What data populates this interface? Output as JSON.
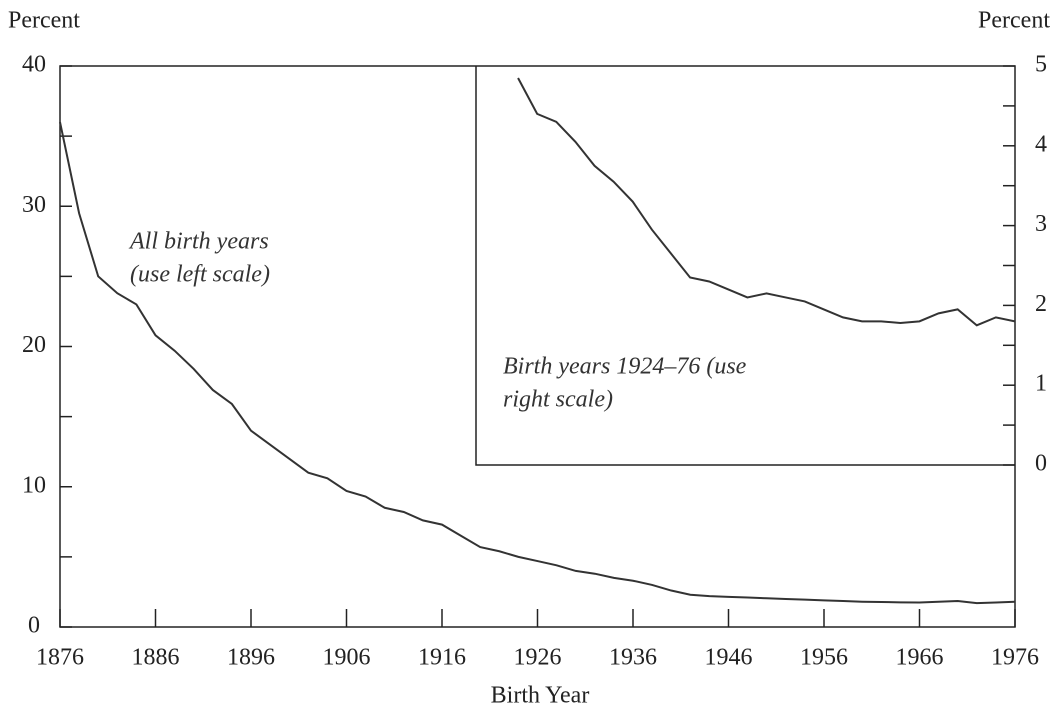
{
  "chart_data": [
    {
      "type": "line",
      "y_label": "Percent",
      "x_label": "Birth Year",
      "annotation": [
        "All birth years",
        "(use left scale)"
      ],
      "x": [
        1876,
        1878,
        1880,
        1882,
        1884,
        1886,
        1888,
        1890,
        1892,
        1894,
        1896,
        1898,
        1900,
        1902,
        1904,
        1906,
        1908,
        1910,
        1912,
        1914,
        1916,
        1918,
        1920,
        1922,
        1924,
        1926,
        1928,
        1930,
        1932,
        1934,
        1936,
        1938,
        1940,
        1942,
        1944,
        1946,
        1948,
        1950,
        1952,
        1954,
        1956,
        1958,
        1960,
        1962,
        1964,
        1966,
        1968,
        1970,
        1972,
        1974,
        1976
      ],
      "values": [
        36,
        29.5,
        25,
        23.8,
        23,
        20.8,
        19.7,
        18.4,
        16.9,
        15.9,
        14,
        13,
        12,
        11,
        10.6,
        9.7,
        9.3,
        8.5,
        8.2,
        7.6,
        7.3,
        6.5,
        5.7,
        5.4,
        5,
        4.7,
        4.4,
        4,
        3.8,
        3.5,
        3.3,
        3,
        2.6,
        2.3,
        2.2,
        2.15,
        2.1,
        2.05,
        2,
        1.95,
        1.9,
        1.85,
        1.8,
        1.78,
        1.76,
        1.75,
        1.8,
        1.85,
        1.7,
        1.75,
        1.8
      ],
      "color": "#333333",
      "xlim": [
        1876,
        1976
      ],
      "xticks": [
        1876,
        1886,
        1896,
        1906,
        1916,
        1926,
        1936,
        1946,
        1956,
        1966,
        1976
      ],
      "ylim": [
        0,
        40
      ],
      "yticks": [
        0,
        10,
        20,
        30,
        40
      ],
      "yticks_minor": [
        5,
        15,
        25,
        35
      ]
    },
    {
      "type": "line",
      "y_label": "Percent",
      "annotation": [
        "Birth years 1924–76 (use",
        "right scale)"
      ],
      "x": [
        1924,
        1926,
        1928,
        1930,
        1932,
        1934,
        1936,
        1938,
        1940,
        1942,
        1944,
        1946,
        1948,
        1950,
        1952,
        1954,
        1956,
        1958,
        1960,
        1962,
        1964,
        1966,
        1968,
        1970,
        1972,
        1974,
        1976
      ],
      "values": [
        4.85,
        4.4,
        4.3,
        4.05,
        3.75,
        3.55,
        3.3,
        2.95,
        2.65,
        2.35,
        2.3,
        2.2,
        2.1,
        2.15,
        2.1,
        2.05,
        1.95,
        1.85,
        1.8,
        1.8,
        1.78,
        1.8,
        1.9,
        1.95,
        1.75,
        1.85,
        1.8
      ],
      "color": "#333333",
      "xlim": [
        1919.6,
        1976
      ],
      "ylim": [
        0,
        5
      ],
      "yticks": [
        0,
        1,
        2,
        3,
        4,
        5
      ],
      "yticks_minor": [
        0.5,
        1.5,
        2.5,
        3.5,
        4.5
      ]
    }
  ]
}
